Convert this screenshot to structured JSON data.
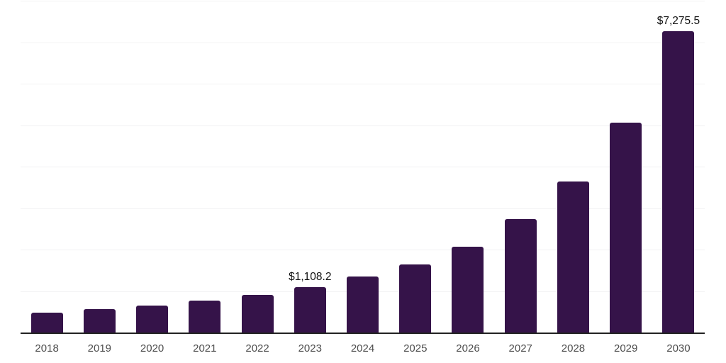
{
  "chart_data": {
    "type": "bar",
    "title": "",
    "xlabel": "",
    "ylabel": "",
    "categories": [
      "2018",
      "2019",
      "2020",
      "2021",
      "2022",
      "2023",
      "2024",
      "2025",
      "2026",
      "2027",
      "2028",
      "2029",
      "2030"
    ],
    "values": [
      490,
      575,
      665,
      795,
      930,
      1108.2,
      1360,
      1655,
      2090,
      2745,
      3655,
      5085,
      7275.5
    ],
    "data_labels": {
      "2023": "$1,108.2",
      "2030": "$7,275.5"
    },
    "ylim": [
      0,
      8000
    ],
    "gridline_interval": 1000,
    "grid": "horizontal",
    "legend": null,
    "colors": {
      "bar": "#351349",
      "gridline": "#f2f2f3",
      "axis_line": "#222222",
      "tick_label": "#4d4d4d",
      "data_label": "#111111",
      "background": "#ffffff"
    }
  }
}
